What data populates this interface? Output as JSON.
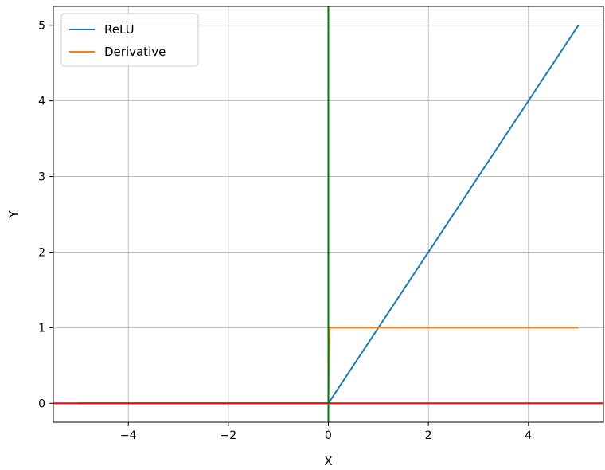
{
  "chart_data": {
    "type": "line",
    "xlabel": "X",
    "ylabel": "Y",
    "xlim": [
      -5.5,
      5.5
    ],
    "ylim": [
      -0.25,
      5.25
    ],
    "xticks": [
      -4,
      -2,
      0,
      2,
      4
    ],
    "yticks": [
      0,
      1,
      2,
      3,
      4,
      5
    ],
    "xtick_labels": [
      "−4",
      "−2",
      "0",
      "2",
      "4"
    ],
    "ytick_labels": [
      "0",
      "1",
      "2",
      "3",
      "4",
      "5"
    ],
    "grid": true,
    "legend_position": "upper left",
    "series": [
      {
        "name": "ReLU",
        "color": "#1f77b4",
        "x": [
          -5,
          0,
          5
        ],
        "y": [
          0,
          0,
          5
        ]
      },
      {
        "name": "Derivative",
        "color": "#ff7f0e",
        "x": [
          -5,
          0,
          0.02,
          5
        ],
        "y": [
          0,
          0,
          1,
          1
        ]
      }
    ],
    "reference_lines": [
      {
        "orientation": "horizontal",
        "value": 0,
        "color": "#ff0000"
      },
      {
        "orientation": "vertical",
        "value": 0,
        "color": "#008000"
      }
    ]
  }
}
